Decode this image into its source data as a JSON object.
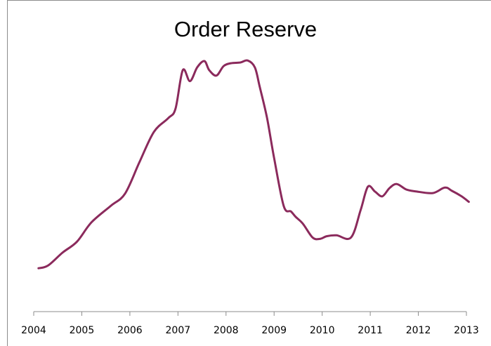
{
  "chart_data": {
    "type": "line",
    "title": "Order Reserve",
    "xlabel": "",
    "ylabel": "",
    "categories": [
      "2004",
      "2005",
      "2006",
      "2007",
      "2008",
      "2009",
      "2010",
      "2011",
      "2012",
      "2013"
    ],
    "xlim": [
      2004,
      2013
    ],
    "ylim": [
      0,
      100
    ],
    "grid": false,
    "legend": "none",
    "line_color": "#8b2a5c",
    "series": [
      {
        "x": [
          2004.1,
          2004.3,
          2004.6,
          2004.9,
          2005.2,
          2005.6,
          2005.9,
          2006.2,
          2006.5,
          2006.8,
          2006.95,
          2007.1,
          2007.25,
          2007.4,
          2007.55,
          2007.65,
          2007.8,
          2007.95,
          2008.1,
          2008.3,
          2008.45,
          2008.6,
          2008.7,
          2008.85,
          2009.0,
          2009.2,
          2009.35,
          2009.45,
          2009.6,
          2009.8,
          2009.95,
          2010.1,
          2010.3,
          2010.6,
          2010.8,
          2010.95,
          2011.1,
          2011.25,
          2011.4,
          2011.55,
          2011.75,
          2011.95,
          2012.3,
          2012.55,
          2012.7,
          2012.9,
          2013.05
        ],
        "y": [
          15.8,
          16.8,
          21.5,
          25.5,
          32.5,
          38.5,
          43,
          54.5,
          65.5,
          70.5,
          74,
          88,
          84,
          89,
          91.3,
          88,
          86,
          89.5,
          90.5,
          90.8,
          91.5,
          89,
          82,
          70.8,
          56,
          38.5,
          36.5,
          34.5,
          32,
          27,
          26.5,
          27.5,
          27.8,
          27,
          37,
          45.5,
          43.7,
          42,
          45,
          46.5,
          44.5,
          43.8,
          43.2,
          45.2,
          44,
          42,
          40
        ]
      }
    ]
  }
}
